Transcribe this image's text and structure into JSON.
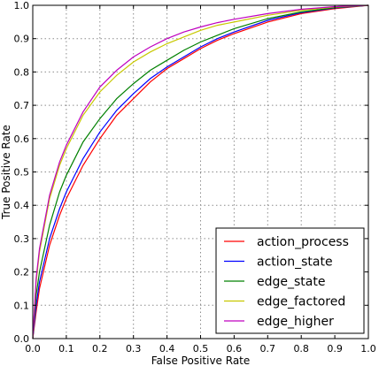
{
  "chart_data": {
    "type": "line",
    "xlabel": "False Positive Rate",
    "ylabel": "True Positive Rate",
    "xlim": [
      0.0,
      1.0
    ],
    "ylim": [
      0.0,
      1.0
    ],
    "xticks": [
      "0.0",
      "0.1",
      "0.2",
      "0.3",
      "0.4",
      "0.5",
      "0.6",
      "0.7",
      "0.8",
      "0.9",
      "1.0"
    ],
    "yticks": [
      "0.0",
      "0.1",
      "0.2",
      "0.3",
      "0.4",
      "0.5",
      "0.6",
      "0.7",
      "0.8",
      "0.9",
      "1.0"
    ],
    "grid": true,
    "legend_position": "bottom-right",
    "series": [
      {
        "name": "action_process",
        "color": "#ff0000",
        "x": [
          0,
          0.01,
          0.02,
          0.05,
          0.08,
          0.1,
          0.15,
          0.2,
          0.25,
          0.3,
          0.35,
          0.4,
          0.45,
          0.5,
          0.55,
          0.6,
          0.7,
          0.8,
          0.9,
          1.0
        ],
        "y": [
          0,
          0.08,
          0.15,
          0.28,
          0.37,
          0.42,
          0.52,
          0.6,
          0.67,
          0.72,
          0.77,
          0.81,
          0.84,
          0.87,
          0.895,
          0.915,
          0.95,
          0.975,
          0.99,
          1.0
        ]
      },
      {
        "name": "action_state",
        "color": "#0000ff",
        "x": [
          0,
          0.01,
          0.02,
          0.05,
          0.08,
          0.1,
          0.15,
          0.2,
          0.25,
          0.3,
          0.35,
          0.4,
          0.45,
          0.5,
          0.55,
          0.6,
          0.7,
          0.8,
          0.9,
          1.0
        ],
        "y": [
          0,
          0.1,
          0.17,
          0.3,
          0.39,
          0.44,
          0.54,
          0.62,
          0.685,
          0.735,
          0.78,
          0.815,
          0.845,
          0.875,
          0.9,
          0.92,
          0.955,
          0.978,
          0.992,
          1.0
        ]
      },
      {
        "name": "edge_state",
        "color": "#008000",
        "x": [
          0,
          0.01,
          0.02,
          0.05,
          0.08,
          0.1,
          0.15,
          0.2,
          0.25,
          0.3,
          0.35,
          0.4,
          0.45,
          0.5,
          0.55,
          0.6,
          0.7,
          0.8,
          0.9,
          1.0
        ],
        "y": [
          0,
          0.13,
          0.2,
          0.34,
          0.44,
          0.49,
          0.59,
          0.66,
          0.72,
          0.765,
          0.805,
          0.835,
          0.865,
          0.89,
          0.91,
          0.93,
          0.96,
          0.98,
          0.993,
          1.0
        ]
      },
      {
        "name": "edge_factored",
        "color": "#c8c800",
        "x": [
          0,
          0.01,
          0.02,
          0.05,
          0.08,
          0.1,
          0.15,
          0.2,
          0.25,
          0.3,
          0.35,
          0.4,
          0.45,
          0.5,
          0.55,
          0.6,
          0.7,
          0.8,
          0.9,
          1.0
        ],
        "y": [
          0,
          0.17,
          0.26,
          0.42,
          0.52,
          0.57,
          0.67,
          0.74,
          0.79,
          0.83,
          0.86,
          0.885,
          0.905,
          0.925,
          0.94,
          0.95,
          0.97,
          0.985,
          0.995,
          1.0
        ]
      },
      {
        "name": "edge_higher",
        "color": "#bf00bf",
        "x": [
          0,
          0.01,
          0.02,
          0.05,
          0.08,
          0.1,
          0.15,
          0.2,
          0.25,
          0.3,
          0.35,
          0.4,
          0.45,
          0.5,
          0.55,
          0.6,
          0.7,
          0.8,
          0.9,
          1.0
        ],
        "y": [
          0,
          0.18,
          0.27,
          0.43,
          0.53,
          0.58,
          0.68,
          0.755,
          0.805,
          0.845,
          0.875,
          0.9,
          0.92,
          0.935,
          0.948,
          0.958,
          0.975,
          0.988,
          0.996,
          1.0
        ]
      }
    ]
  }
}
